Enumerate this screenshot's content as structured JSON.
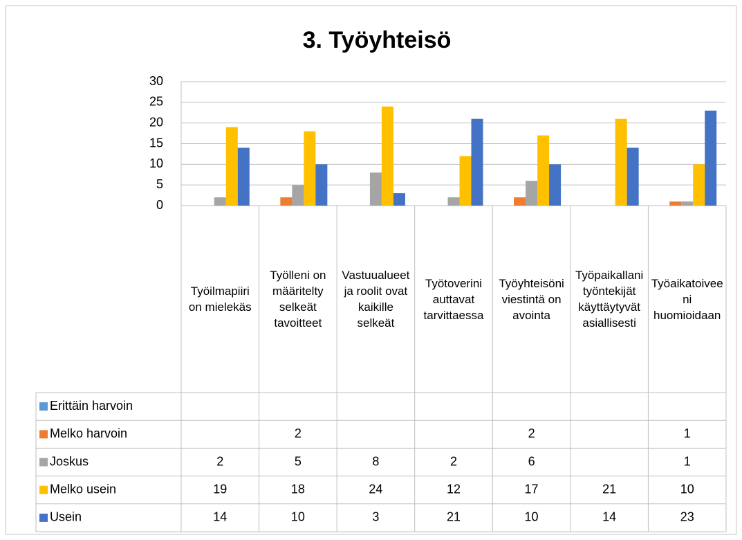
{
  "chart_data": {
    "type": "bar",
    "title": "3. Työyhteisö",
    "categories": [
      "Työilmapiiri on mielekäs",
      "Työlleni on määritelty selkeät tavoitteet",
      "Vastuualueet ja roolit ovat kaikille selkeät",
      "Työtoverini auttavat tarvittaessa",
      "Työyhteisöni viestintä on avointa",
      "Työpaikallani työntekijät käyttäytyvät asiallisesti",
      "Työaikatoiveeni huomioidaan"
    ],
    "series": [
      {
        "name": "Erittäin harvoin",
        "color": "#5b9bd5",
        "values": [
          null,
          null,
          null,
          null,
          null,
          null,
          null
        ]
      },
      {
        "name": "Melko harvoin",
        "color": "#ed7d31",
        "values": [
          null,
          2,
          null,
          null,
          2,
          null,
          1
        ]
      },
      {
        "name": "Joskus",
        "color": "#a5a5a5",
        "values": [
          2,
          5,
          8,
          2,
          6,
          null,
          1
        ]
      },
      {
        "name": "Melko usein",
        "color": "#ffc000",
        "values": [
          19,
          18,
          24,
          12,
          17,
          21,
          10
        ]
      },
      {
        "name": "Usein",
        "color": "#4472c4",
        "values": [
          14,
          10,
          3,
          21,
          10,
          14,
          23
        ]
      }
    ],
    "ylim": [
      0,
      30
    ],
    "yticks": [
      0,
      5,
      10,
      15,
      20,
      25,
      30
    ],
    "grid": true,
    "data_table": true
  }
}
